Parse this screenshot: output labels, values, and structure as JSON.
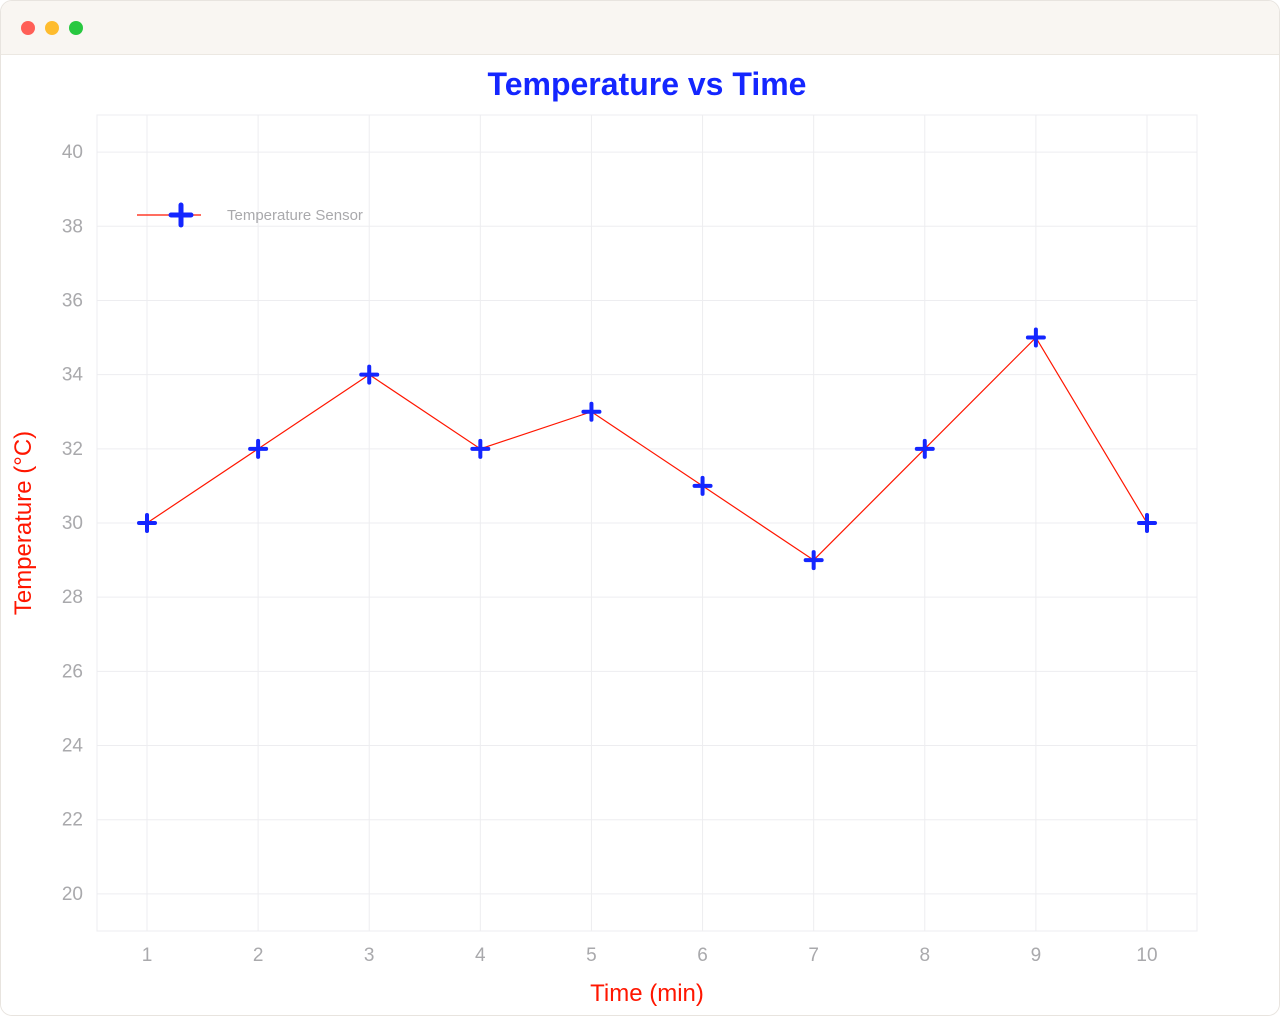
{
  "window": {
    "traffic_light_colors": {
      "close": "#ff5f57",
      "min": "#febc2e",
      "max": "#28c840"
    },
    "background": "#f9f6f2"
  },
  "chart": {
    "type": "line",
    "title": "Temperature vs Time",
    "title_color": "#1426ff",
    "title_fontsize": 32,
    "xlabel": "Time (min)",
    "ylabel": "Temperature (°C)",
    "axis_label_color": "#ff1600",
    "axis_label_fontsize": 24,
    "tick_label_color": "#a9a9ac",
    "tick_label_fontsize": 19,
    "x_values": [
      1,
      2,
      3,
      4,
      5,
      6,
      7,
      8,
      9,
      10
    ],
    "y_values": [
      30,
      32,
      34,
      32,
      33,
      31,
      29,
      32,
      35,
      30
    ],
    "xlim": [
      0.55,
      10.45
    ],
    "ylim": [
      19,
      41
    ],
    "xticks": [
      1,
      2,
      3,
      4,
      5,
      6,
      7,
      8,
      9,
      10
    ],
    "yticks": [
      20,
      22,
      24,
      26,
      28,
      30,
      32,
      34,
      36,
      38,
      40
    ],
    "line_color": "#ff1600",
    "line_width": 1.2,
    "marker": "plus",
    "marker_color": "#1426ff",
    "marker_size": 16,
    "marker_stroke_width": 4,
    "grid_color": "#ededf0",
    "grid_width": 1,
    "plot_border_color": "#ededf0",
    "background_color": "#ffffff",
    "legend": {
      "label": "Temperature Sensor",
      "label_color": "#a9a9ac",
      "label_fontsize": 15,
      "position": "upper-left"
    }
  }
}
